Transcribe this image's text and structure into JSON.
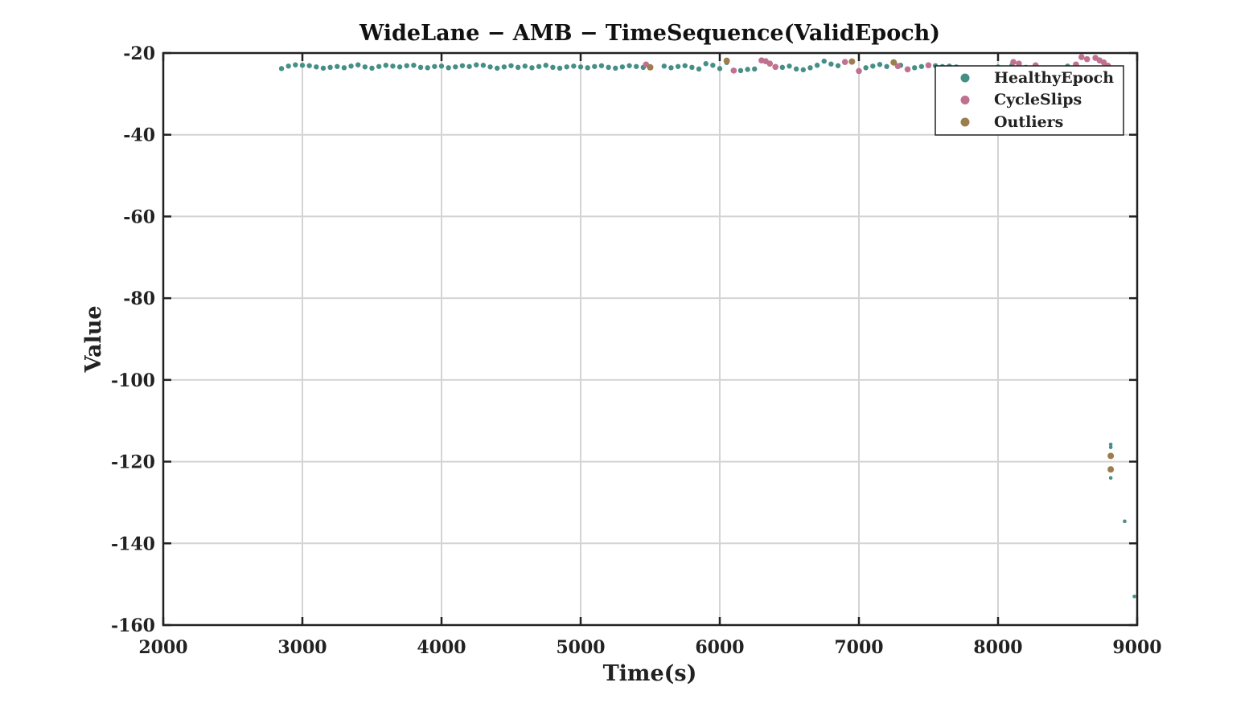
{
  "chart_data": {
    "type": "scatter",
    "title": "WideLane − AMB − TimeSequence(ValidEpoch)",
    "xlabel": "Time(s)",
    "ylabel": "Value",
    "xlim": [
      2000,
      9000
    ],
    "ylim": [
      -160,
      -20
    ],
    "xticks": [
      2000,
      3000,
      4000,
      5000,
      6000,
      7000,
      8000,
      9000
    ],
    "yticks": [
      -20,
      -40,
      -60,
      -80,
      -100,
      -120,
      -140,
      -160
    ],
    "grid": true,
    "legend_position": "top-right",
    "series": [
      {
        "name": "HealthyEpoch",
        "color": "#468f87",
        "points": [
          [
            2850,
            -23.8
          ],
          [
            2900,
            -23.2
          ],
          [
            2950,
            -22.9
          ],
          [
            3000,
            -23.0
          ],
          [
            3050,
            -23.1
          ],
          [
            3100,
            -23.4
          ],
          [
            3150,
            -23.7
          ],
          [
            3200,
            -23.5
          ],
          [
            3250,
            -23.3
          ],
          [
            3300,
            -23.6
          ],
          [
            3350,
            -23.2
          ],
          [
            3400,
            -22.9
          ],
          [
            3450,
            -23.4
          ],
          [
            3500,
            -23.7
          ],
          [
            3550,
            -23.3
          ],
          [
            3600,
            -23.0
          ],
          [
            3650,
            -23.2
          ],
          [
            3700,
            -23.4
          ],
          [
            3750,
            -23.1
          ],
          [
            3800,
            -23.0
          ],
          [
            3850,
            -23.5
          ],
          [
            3900,
            -23.6
          ],
          [
            3950,
            -23.3
          ],
          [
            4000,
            -23.2
          ],
          [
            4050,
            -23.6
          ],
          [
            4100,
            -23.4
          ],
          [
            4150,
            -23.1
          ],
          [
            4200,
            -23.3
          ],
          [
            4250,
            -22.9
          ],
          [
            4300,
            -23.0
          ],
          [
            4350,
            -23.4
          ],
          [
            4400,
            -23.7
          ],
          [
            4450,
            -23.4
          ],
          [
            4500,
            -23.1
          ],
          [
            4550,
            -23.5
          ],
          [
            4600,
            -23.2
          ],
          [
            4650,
            -23.6
          ],
          [
            4700,
            -23.3
          ],
          [
            4750,
            -23.0
          ],
          [
            4800,
            -23.5
          ],
          [
            4850,
            -23.7
          ],
          [
            4900,
            -23.4
          ],
          [
            4950,
            -23.2
          ],
          [
            5000,
            -23.4
          ],
          [
            5050,
            -23.6
          ],
          [
            5100,
            -23.3
          ],
          [
            5150,
            -23.1
          ],
          [
            5200,
            -23.5
          ],
          [
            5250,
            -23.7
          ],
          [
            5300,
            -23.4
          ],
          [
            5350,
            -23.1
          ],
          [
            5400,
            -23.3
          ],
          [
            5450,
            -23.5
          ],
          [
            5600,
            -23.2
          ],
          [
            5650,
            -23.6
          ],
          [
            5700,
            -23.3
          ],
          [
            5750,
            -23.1
          ],
          [
            5800,
            -23.5
          ],
          [
            5850,
            -23.9
          ],
          [
            5900,
            -22.6
          ],
          [
            5950,
            -23.0
          ],
          [
            6000,
            -23.8
          ],
          [
            6050,
            -22.3
          ],
          [
            6150,
            -24.3
          ],
          [
            6200,
            -24.0
          ],
          [
            6250,
            -23.9
          ],
          [
            6450,
            -23.5
          ],
          [
            6500,
            -23.2
          ],
          [
            6550,
            -23.9
          ],
          [
            6600,
            -24.1
          ],
          [
            6650,
            -23.6
          ],
          [
            6700,
            -23.0
          ],
          [
            6750,
            -22.0
          ],
          [
            6800,
            -22.7
          ],
          [
            6850,
            -23.1
          ],
          [
            7050,
            -23.6
          ],
          [
            7100,
            -23.2
          ],
          [
            7150,
            -22.8
          ],
          [
            7200,
            -23.3
          ],
          [
            7300,
            -23.0
          ],
          [
            7400,
            -23.6
          ],
          [
            7450,
            -23.3
          ],
          [
            7550,
            -23.1
          ],
          [
            7600,
            -23.3
          ],
          [
            7650,
            -23.2
          ],
          [
            7700,
            -23.4
          ],
          [
            8000,
            -23.4
          ],
          [
            8100,
            -23.0
          ],
          [
            8200,
            -23.5
          ],
          [
            8500,
            -23.2
          ],
          [
            8810,
            -115.8
          ],
          [
            8810,
            -116.5
          ],
          [
            8810,
            -124.0
          ],
          [
            8910,
            -134.6
          ],
          [
            8980,
            -153.0
          ]
        ]
      },
      {
        "name": "CycleSlips",
        "color": "#c07190",
        "points": [
          [
            5470,
            -22.8
          ],
          [
            6100,
            -24.3
          ],
          [
            6300,
            -21.8
          ],
          [
            6330,
            -22.0
          ],
          [
            6360,
            -22.6
          ],
          [
            6400,
            -23.4
          ],
          [
            6900,
            -22.2
          ],
          [
            7000,
            -24.4
          ],
          [
            7280,
            -23.2
          ],
          [
            7350,
            -24.0
          ],
          [
            7500,
            -23.0
          ],
          [
            8110,
            -22.2
          ],
          [
            8150,
            -22.6
          ],
          [
            8270,
            -23.0
          ],
          [
            8560,
            -22.8
          ],
          [
            8600,
            -21.0
          ],
          [
            8640,
            -21.5
          ],
          [
            8700,
            -21.2
          ],
          [
            8730,
            -21.8
          ],
          [
            8760,
            -22.3
          ],
          [
            8790,
            -23.1
          ]
        ]
      },
      {
        "name": "Outliers",
        "color": "#9c7d4d",
        "points": [
          [
            5500,
            -23.5
          ],
          [
            6050,
            -21.9
          ],
          [
            6950,
            -22.1
          ],
          [
            7250,
            -22.3
          ],
          [
            8810,
            -118.6
          ],
          [
            8810,
            -121.9
          ]
        ]
      }
    ]
  }
}
